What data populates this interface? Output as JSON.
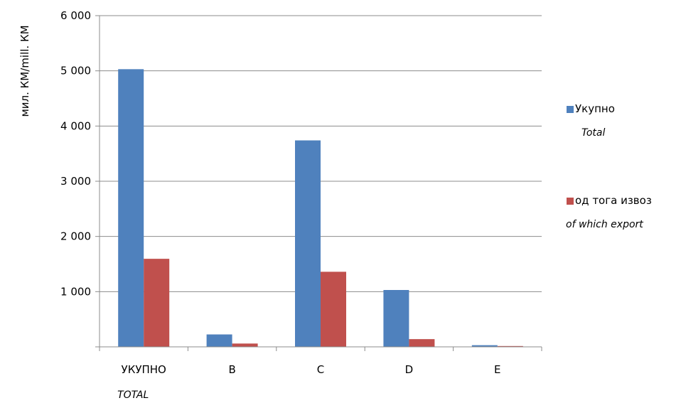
{
  "chart_data": {
    "type": "bar",
    "ylabel": "мил. КМ/mill. КМ",
    "categories": [
      "УКУПНО",
      "B",
      "C",
      "D",
      "E"
    ],
    "category_sublabels": [
      "TOTAL",
      "",
      "",
      "",
      ""
    ],
    "series": [
      {
        "name": "Укупно",
        "name_sub": "Total",
        "color": "#4F81BD",
        "values": [
          5030,
          225,
          3740,
          1030,
          30
        ]
      },
      {
        "name": "од тога извоз",
        "name_sub": "of which export",
        "color": "#C0504D",
        "values": [
          1595,
          60,
          1360,
          140,
          15
        ]
      }
    ],
    "ylim": [
      0,
      6000
    ],
    "yticks": [
      0,
      1000,
      2000,
      3000,
      4000,
      5000,
      6000
    ],
    "ytick_labels": [
      "",
      "1 000",
      "2 000",
      "3 000",
      "4 000",
      "5 000",
      "6 000"
    ],
    "grid": true,
    "legend_position": "right"
  }
}
